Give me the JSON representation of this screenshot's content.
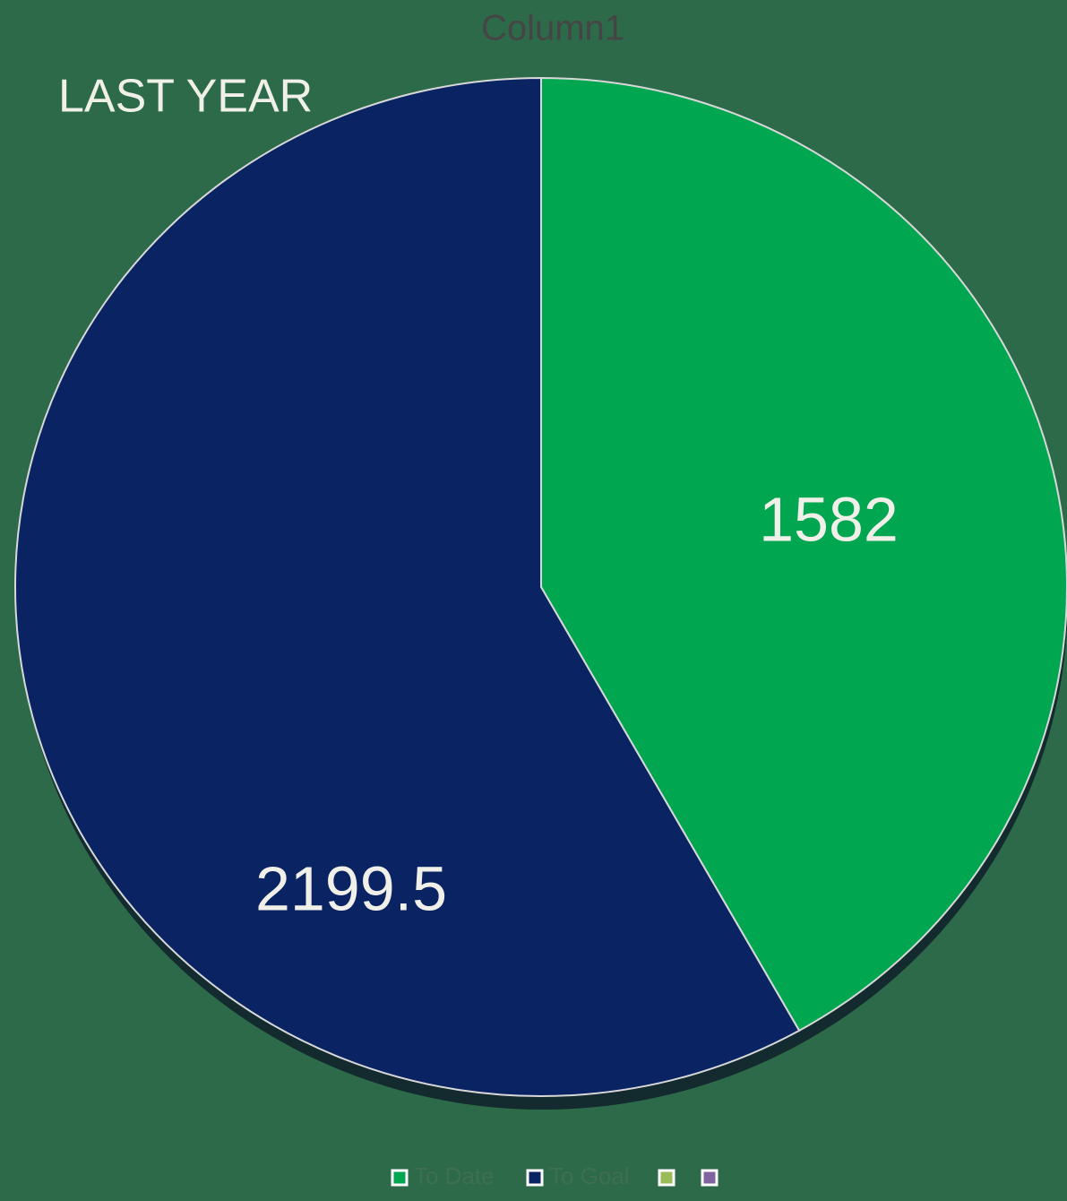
{
  "chart_data": {
    "type": "pie",
    "title": "Column1",
    "annotation": "LAST YEAR",
    "categories": [
      "To Date",
      "To Goal",
      null,
      null
    ],
    "values": [
      1582,
      2199.5,
      0,
      0
    ],
    "colors": [
      "#00a650",
      "#0a2463",
      "#9bbb59",
      "#8064a2"
    ],
    "legend": "bottom"
  }
}
